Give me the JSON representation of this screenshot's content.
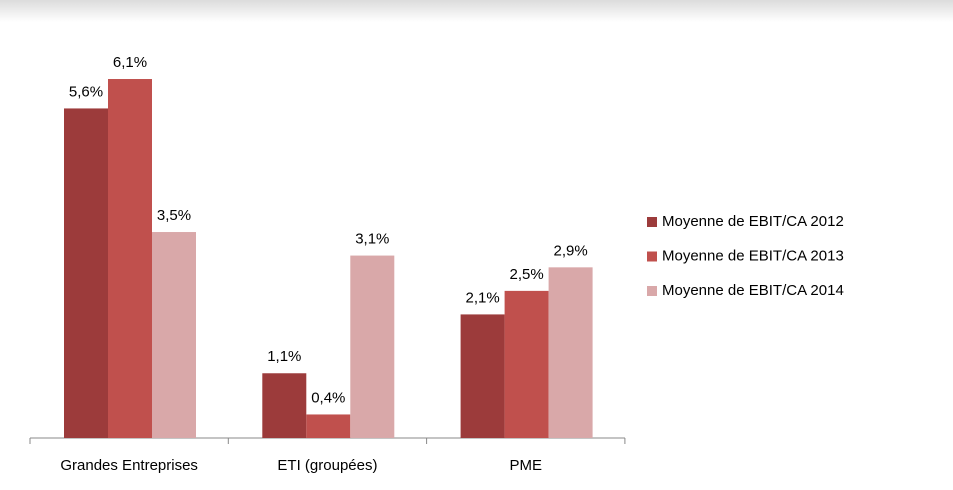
{
  "chart_data": {
    "type": "bar",
    "categories": [
      "Grandes Entreprises",
      "ETI (groupées)",
      "PME"
    ],
    "series": [
      {
        "name": "Moyenne de EBIT/CA 2012",
        "color": "#9c3b3b",
        "values": [
          5.6,
          1.1,
          2.1
        ],
        "value_labels": [
          "5,6%",
          "1,1%",
          "2,1%"
        ]
      },
      {
        "name": "Moyenne de EBIT/CA 2013",
        "color": "#c0504d",
        "values": [
          6.1,
          0.4,
          2.5
        ],
        "value_labels": [
          "6,1%",
          "0,4%",
          "2,5%"
        ]
      },
      {
        "name": "Moyenne de EBIT/CA 2014",
        "color": "#d9a8a9",
        "values": [
          3.5,
          3.1,
          2.9
        ],
        "value_labels": [
          "3,5%",
          "3,1%",
          "2,9%"
        ]
      }
    ]
  }
}
